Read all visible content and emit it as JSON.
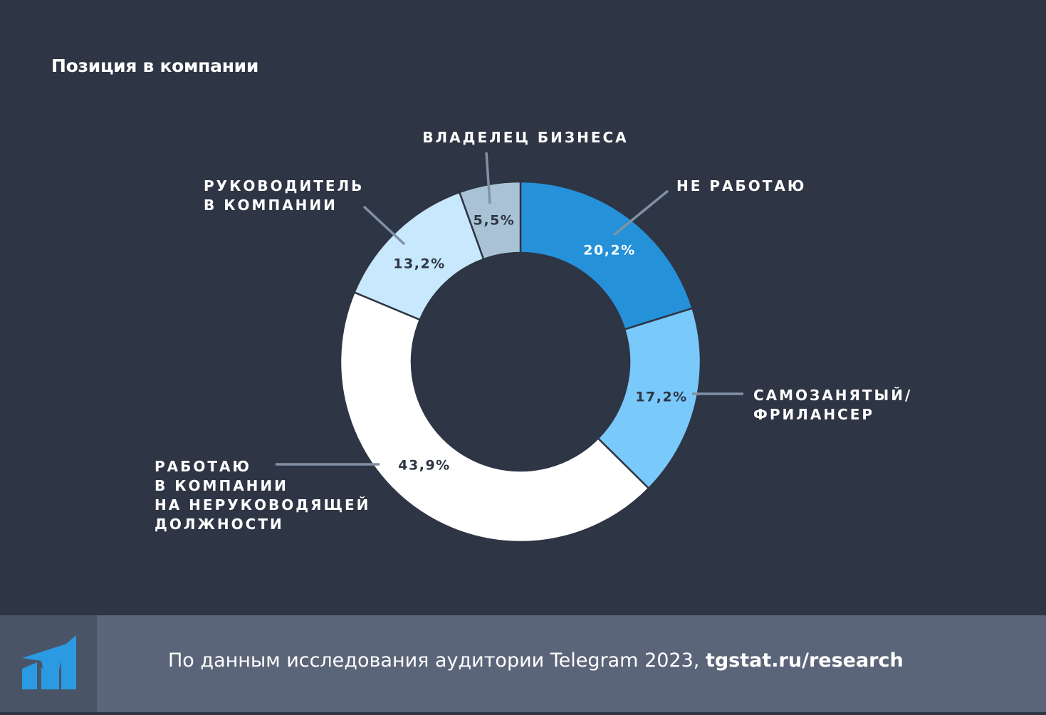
{
  "title": "Позиция в компании",
  "footer": {
    "text": "По данным исследования аудитории Telegram 2023, ",
    "link": "tgstat.ru/research"
  },
  "chart_data": {
    "type": "pie",
    "donut": true,
    "slices": [
      {
        "label_lines": [
          "НЕ РАБОТАЮ"
        ],
        "value": 20.2,
        "value_text": "20,2%",
        "color": "#2491d9",
        "text_color": "#ffffff"
      },
      {
        "label_lines": [
          "САМОЗАНЯТЫЙ/",
          "ФРИЛАНСЕР"
        ],
        "value": 17.2,
        "value_text": "17,2%",
        "color": "#79c9fb",
        "text_color": "#2e3544"
      },
      {
        "label_lines": [
          "РАБОТАЮ",
          "В КОМПАНИИ",
          "НА НЕРУКОВОДЯЩЕЙ",
          "ДОЛЖНОСТИ"
        ],
        "value": 43.9,
        "value_text": "43,9%",
        "color": "#ffffff",
        "text_color": "#2e3544"
      },
      {
        "label_lines": [
          "РУКОВОДИТЕЛЬ",
          "В КОМПАНИИ"
        ],
        "value": 13.2,
        "value_text": "13,2%",
        "color": "#c8e8fd",
        "text_color": "#2e3544"
      },
      {
        "label_lines": [
          "ВЛАДЕЛЕЦ БИЗНЕСА"
        ],
        "value": 5.5,
        "value_text": "5,5%",
        "color": "#a9c2d5",
        "text_color": "#2e3544"
      }
    ]
  }
}
